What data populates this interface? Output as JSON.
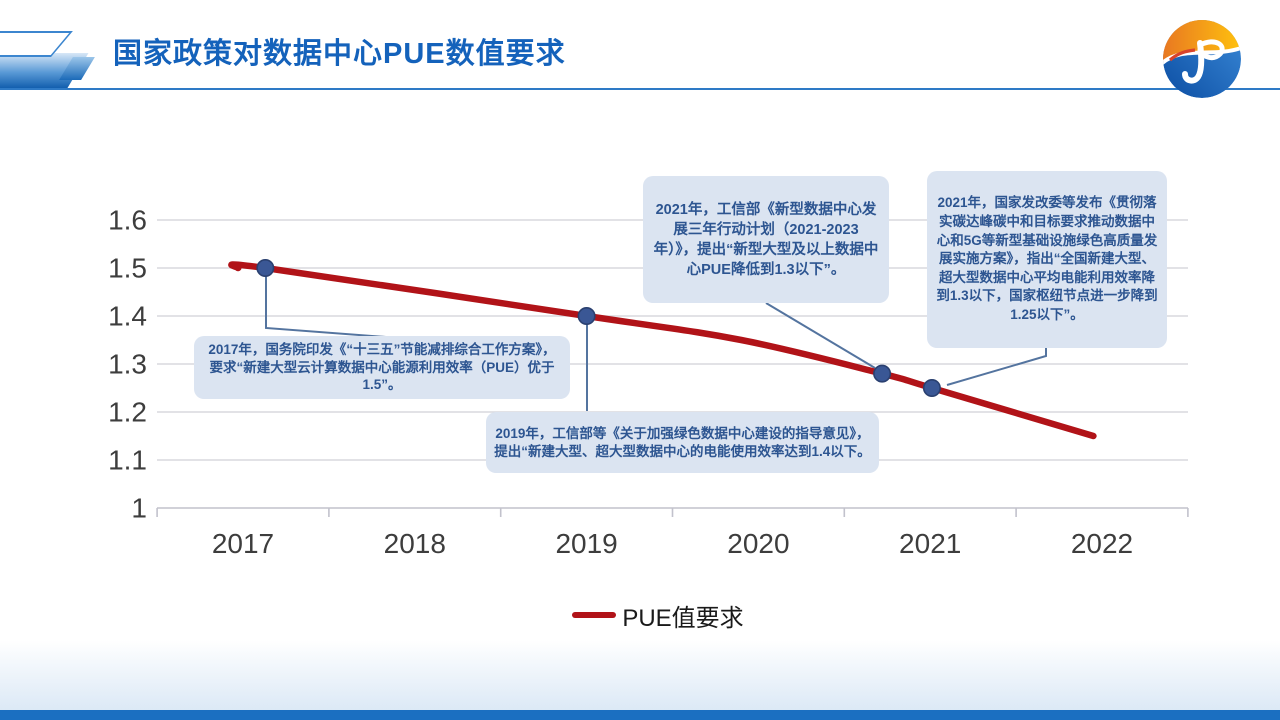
{
  "slide": {
    "title": "国家政策对数据中心PUE数值要求"
  },
  "chart_data": {
    "type": "line",
    "title": "",
    "xlabel": "",
    "ylabel": "",
    "categories": [
      "2017",
      "2018",
      "2019",
      "2020",
      "2021",
      "2022"
    ],
    "y_ticks": [
      "1.6",
      "1.5",
      "1.4",
      "1.3",
      "1.2",
      "1.1",
      "1"
    ],
    "ylim": [
      1,
      1.6
    ],
    "grid": true,
    "legend_position": "bottom",
    "series": [
      {
        "name": "PUE值要求",
        "color": "#b11318",
        "points": [
          {
            "x": 2016.97,
            "y": 1.5
          },
          {
            "x": 2017.13,
            "y": 1.5
          },
          {
            "x": 2019.0,
            "y": 1.4
          },
          {
            "x": 2019.9,
            "y": 1.35
          },
          {
            "x": 2020.72,
            "y": 1.28
          },
          {
            "x": 2021.01,
            "y": 1.25
          },
          {
            "x": 2021.95,
            "y": 1.15
          }
        ],
        "markers": [
          {
            "x": 2017.13,
            "y": 1.5
          },
          {
            "x": 2019.0,
            "y": 1.4
          },
          {
            "x": 2020.72,
            "y": 1.28
          },
          {
            "x": 2021.01,
            "y": 1.25
          }
        ]
      }
    ],
    "legend": [
      {
        "label": "PUE值要求",
        "color": "#b11318"
      }
    ],
    "annotations": [
      {
        "id": "2017-state-council",
        "text": "2017年，国务院印发《“十三五”节能减排综合工作方案》，要求“新建大型云计算数据中心能源利用效率（PUE）优于1.5”。"
      },
      {
        "id": "2019-miit",
        "text": "2019年，工信部等《关于加强绿色数据中心建设的指导意见》，提出“新建大型、超大型数据中心的电能使用效率达到1.4以下。"
      },
      {
        "id": "2021-miit",
        "text": "2021年，工信部《新型数据中心发展三年行动计划（2021-2023年）》，提出“新型大型及以上数据中心PUE降低到1.3以下”。"
      },
      {
        "id": "2021-ndrc",
        "text": "2021年，国家发改委等发布《贯彻落实碳达峰碳中和目标要求推动数据中心和5G等新型基础设施绿色高质量发展实施方案》，指出“全国新建大型、超大型数据中心平均电能利用效率降到1.3以下，国家枢纽节点进一步降到1.25以下”。"
      }
    ]
  },
  "colors": {
    "title_blue": "#1462bb",
    "line_red": "#b11318",
    "marker_fill": "#3a5795",
    "marker_stroke": "#2a4070",
    "connector": "#54749f",
    "gridline": "#d8d8de",
    "axis": "#c2c2cc",
    "callout_bg": "#dbe4f1",
    "callout_text": "#2d5591",
    "bottom_bar": "#1b6fc1"
  }
}
